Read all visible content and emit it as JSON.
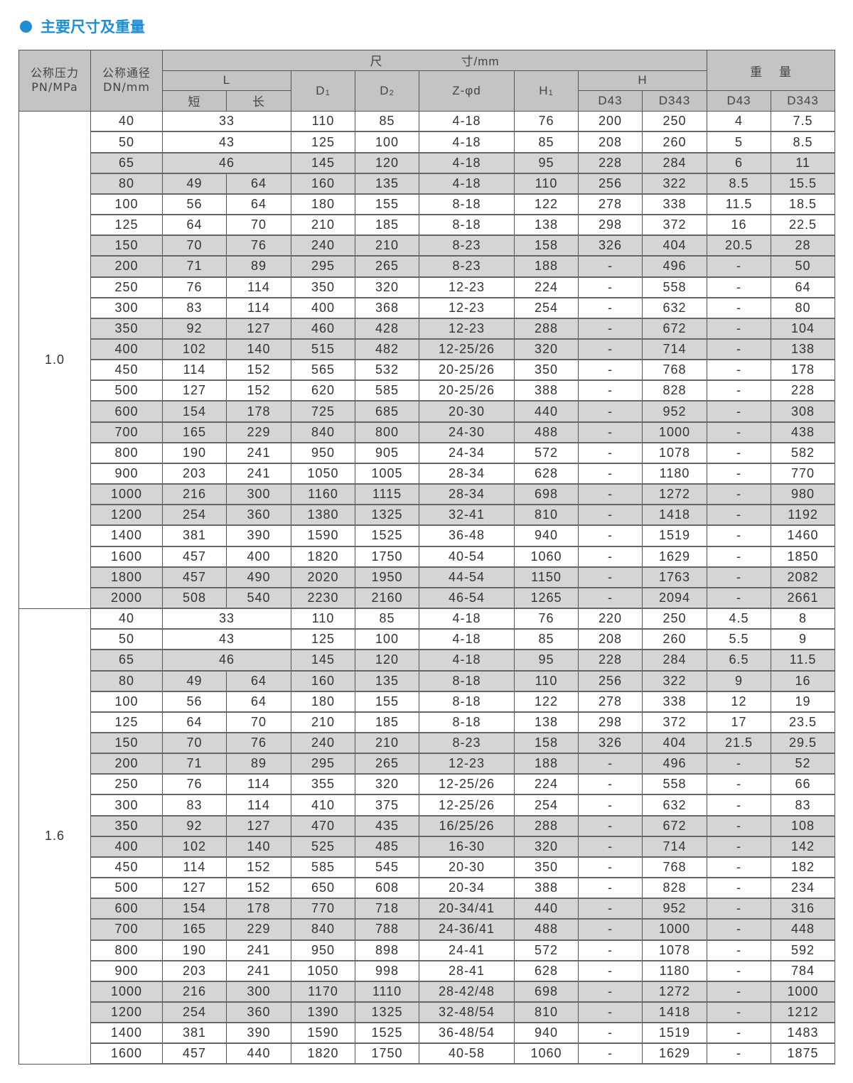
{
  "title": "主要尺寸及重量",
  "colors": {
    "accent": "#1e8fd6",
    "header_bg": "#c4c4c4",
    "row_shade": "#d5d5d5"
  },
  "header": {
    "pn_label_1": "公称压力",
    "pn_label_2": "PN/MPa",
    "dn_label_1": "公称通径",
    "dn_label_2": "DN/mm",
    "dimension_label_1": "尺",
    "dimension_label_2": "寸/mm",
    "weight_label": "重    量",
    "L": "L",
    "L_short": "短",
    "L_long": "长",
    "D1": "D",
    "D1_sub": "1",
    "D2": "D",
    "D2_sub": "2",
    "Z": "Z-φd",
    "H1": "H",
    "H1_sub": "1",
    "H": "H",
    "H_D43": "D43",
    "H_D343": "D343",
    "W_D43": "D43",
    "W_D343": "D343"
  },
  "groups": [
    {
      "pn": "1.0",
      "rows": [
        [
          "40",
          "33",
          null,
          "110",
          "85",
          "4-18",
          "76",
          "200",
          "250",
          "4",
          "7.5"
        ],
        [
          "50",
          "43",
          null,
          "125",
          "100",
          "4-18",
          "85",
          "208",
          "260",
          "5",
          "8.5"
        ],
        [
          "65",
          "46",
          null,
          "145",
          "120",
          "4-18",
          "95",
          "228",
          "284",
          "6",
          "11"
        ],
        [
          "80",
          "49",
          "64",
          "160",
          "135",
          "4-18",
          "110",
          "256",
          "322",
          "8.5",
          "15.5"
        ],
        [
          "100",
          "56",
          "64",
          "180",
          "155",
          "8-18",
          "122",
          "278",
          "338",
          "11.5",
          "18.5"
        ],
        [
          "125",
          "64",
          "70",
          "210",
          "185",
          "8-18",
          "138",
          "298",
          "372",
          "16",
          "22.5"
        ],
        [
          "150",
          "70",
          "76",
          "240",
          "210",
          "8-23",
          "158",
          "326",
          "404",
          "20.5",
          "28"
        ],
        [
          "200",
          "71",
          "89",
          "295",
          "265",
          "8-23",
          "188",
          "-",
          "496",
          "-",
          "50"
        ],
        [
          "250",
          "76",
          "114",
          "350",
          "320",
          "12-23",
          "224",
          "-",
          "558",
          "-",
          "64"
        ],
        [
          "300",
          "83",
          "114",
          "400",
          "368",
          "12-23",
          "254",
          "-",
          "632",
          "-",
          "80"
        ],
        [
          "350",
          "92",
          "127",
          "460",
          "428",
          "12-23",
          "288",
          "-",
          "672",
          "-",
          "104"
        ],
        [
          "400",
          "102",
          "140",
          "515",
          "482",
          "12-25/26",
          "320",
          "-",
          "714",
          "-",
          "138"
        ],
        [
          "450",
          "114",
          "152",
          "565",
          "532",
          "20-25/26",
          "350",
          "-",
          "768",
          "-",
          "178"
        ],
        [
          "500",
          "127",
          "152",
          "620",
          "585",
          "20-25/26",
          "388",
          "-",
          "828",
          "-",
          "228"
        ],
        [
          "600",
          "154",
          "178",
          "725",
          "685",
          "20-30",
          "440",
          "-",
          "952",
          "-",
          "308"
        ],
        [
          "700",
          "165",
          "229",
          "840",
          "800",
          "24-30",
          "488",
          "-",
          "1000",
          "-",
          "438"
        ],
        [
          "800",
          "190",
          "241",
          "950",
          "905",
          "24-34",
          "572",
          "-",
          "1078",
          "-",
          "582"
        ],
        [
          "900",
          "203",
          "241",
          "1050",
          "1005",
          "28-34",
          "628",
          "-",
          "1180",
          "-",
          "770"
        ],
        [
          "1000",
          "216",
          "300",
          "1160",
          "1115",
          "28-34",
          "698",
          "-",
          "1272",
          "-",
          "980"
        ],
        [
          "1200",
          "254",
          "360",
          "1380",
          "1325",
          "32-41",
          "810",
          "-",
          "1418",
          "-",
          "1192"
        ],
        [
          "1400",
          "381",
          "390",
          "1590",
          "1525",
          "36-48",
          "940",
          "-",
          "1519",
          "-",
          "1460"
        ],
        [
          "1600",
          "457",
          "400",
          "1820",
          "1750",
          "40-54",
          "1060",
          "-",
          "1629",
          "-",
          "1850"
        ],
        [
          "1800",
          "457",
          "490",
          "2020",
          "1950",
          "44-54",
          "1150",
          "-",
          "1763",
          "-",
          "2082"
        ],
        [
          "2000",
          "508",
          "540",
          "2230",
          "2160",
          "46-54",
          "1265",
          "-",
          "2094",
          "-",
          "2661"
        ]
      ]
    },
    {
      "pn": "1.6",
      "rows": [
        [
          "40",
          "33",
          null,
          "110",
          "85",
          "4-18",
          "76",
          "220",
          "250",
          "4.5",
          "8"
        ],
        [
          "50",
          "43",
          null,
          "125",
          "100",
          "4-18",
          "85",
          "208",
          "260",
          "5.5",
          "9"
        ],
        [
          "65",
          "46",
          null,
          "145",
          "120",
          "4-18",
          "95",
          "228",
          "284",
          "6.5",
          "11.5"
        ],
        [
          "80",
          "49",
          "64",
          "160",
          "135",
          "8-18",
          "110",
          "256",
          "322",
          "9",
          "16"
        ],
        [
          "100",
          "56",
          "64",
          "180",
          "155",
          "8-18",
          "122",
          "278",
          "338",
          "12",
          "19"
        ],
        [
          "125",
          "64",
          "70",
          "210",
          "185",
          "8-18",
          "138",
          "298",
          "372",
          "17",
          "23.5"
        ],
        [
          "150",
          "70",
          "76",
          "240",
          "210",
          "8-23",
          "158",
          "326",
          "404",
          "21.5",
          "29.5"
        ],
        [
          "200",
          "71",
          "89",
          "295",
          "265",
          "12-23",
          "188",
          "-",
          "496",
          "-",
          "52"
        ],
        [
          "250",
          "76",
          "114",
          "355",
          "320",
          "12-25/26",
          "224",
          "-",
          "558",
          "-",
          "66"
        ],
        [
          "300",
          "83",
          "114",
          "410",
          "375",
          "12-25/26",
          "254",
          "-",
          "632",
          "-",
          "83"
        ],
        [
          "350",
          "92",
          "127",
          "470",
          "435",
          "16/25/26",
          "288",
          "-",
          "672",
          "-",
          "108"
        ],
        [
          "400",
          "102",
          "140",
          "525",
          "485",
          "16-30",
          "320",
          "-",
          "714",
          "-",
          "142"
        ],
        [
          "450",
          "114",
          "152",
          "585",
          "545",
          "20-30",
          "350",
          "-",
          "768",
          "-",
          "182"
        ],
        [
          "500",
          "127",
          "152",
          "650",
          "608",
          "20-34",
          "388",
          "-",
          "828",
          "-",
          "234"
        ],
        [
          "600",
          "154",
          "178",
          "770",
          "718",
          "20-34/41",
          "440",
          "-",
          "952",
          "-",
          "316"
        ],
        [
          "700",
          "165",
          "229",
          "840",
          "788",
          "24-36/41",
          "488",
          "-",
          "1000",
          "-",
          "448"
        ],
        [
          "800",
          "190",
          "241",
          "950",
          "898",
          "24-41",
          "572",
          "-",
          "1078",
          "-",
          "592"
        ],
        [
          "900",
          "203",
          "241",
          "1050",
          "998",
          "28-41",
          "628",
          "-",
          "1180",
          "-",
          "784"
        ],
        [
          "1000",
          "216",
          "300",
          "1170",
          "1110",
          "28-42/48",
          "698",
          "-",
          "1272",
          "-",
          "1000"
        ],
        [
          "1200",
          "254",
          "360",
          "1390",
          "1325",
          "32-48/54",
          "810",
          "-",
          "1418",
          "-",
          "1212"
        ],
        [
          "1400",
          "381",
          "390",
          "1590",
          "1525",
          "36-48/54",
          "940",
          "-",
          "1519",
          "-",
          "1483"
        ],
        [
          "1600",
          "457",
          "440",
          "1820",
          "1750",
          "40-58",
          "1060",
          "-",
          "1629",
          "-",
          "1875"
        ]
      ]
    }
  ]
}
